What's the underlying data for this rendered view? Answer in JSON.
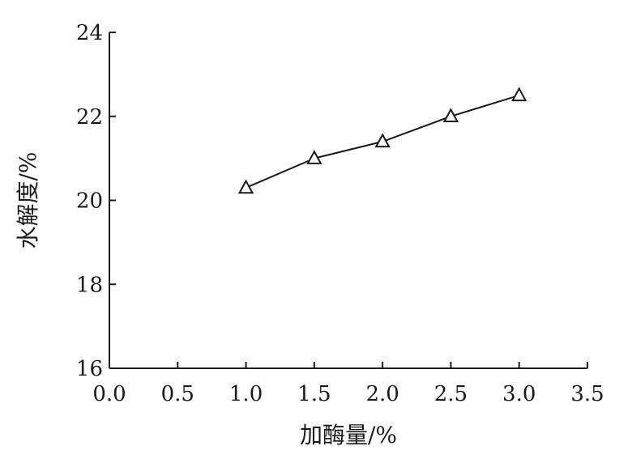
{
  "chart_data": {
    "type": "line",
    "title": "",
    "xlabel": "加酶量/%",
    "ylabel": "水解度/%",
    "xlim": [
      0.0,
      3.5
    ],
    "ylim": [
      16,
      24
    ],
    "x_ticks": [
      "0.0",
      "0.5",
      "1.0",
      "1.5",
      "2.0",
      "2.5",
      "3.0",
      "3.5"
    ],
    "y_ticks": [
      "16",
      "18",
      "20",
      "22",
      "24"
    ],
    "grid": false,
    "legend": "none",
    "marker": "open-triangle",
    "series": [
      {
        "x": [
          1.0,
          1.5,
          2.0,
          2.5,
          3.0
        ],
        "values": [
          20.3,
          21.0,
          21.4,
          22.0,
          22.5
        ]
      }
    ],
    "colors": {
      "axis": "#1a1a1a",
      "line": "#1a1a1a",
      "background": "#ffffff"
    }
  }
}
